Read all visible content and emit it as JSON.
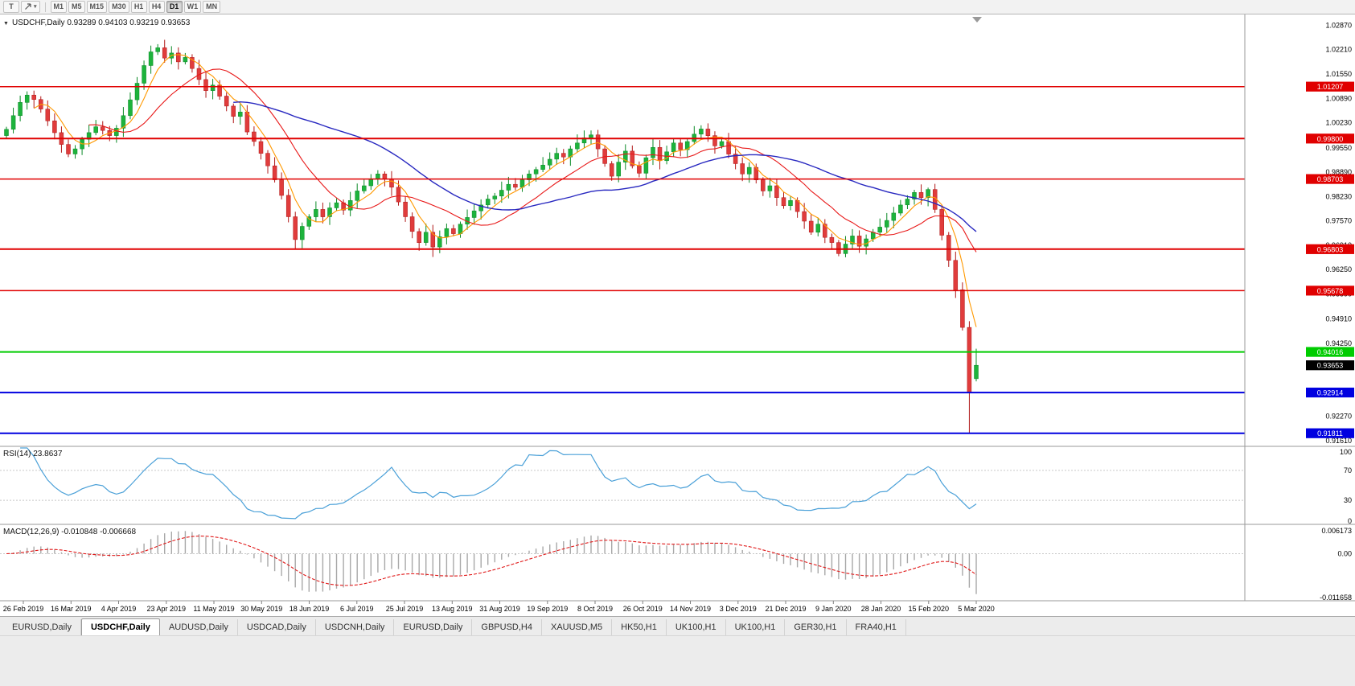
{
  "toolbar": {
    "tools": [
      {
        "name": "text-tool",
        "label": "T"
      },
      {
        "name": "cursor-tool",
        "icon": "cursor-arrow-icon"
      }
    ],
    "timeframes": [
      "M1",
      "M5",
      "M15",
      "M30",
      "H1",
      "H4",
      "D1",
      "W1",
      "MN"
    ],
    "active_timeframe": "D1"
  },
  "chart_header": {
    "collapse_arrow": "▼",
    "symbol": "USDCHF,Daily",
    "ohlc": "0.93289 0.94103 0.93219 0.93653"
  },
  "chart_data": {
    "type": "candlestick",
    "symbol": "USDCHF",
    "period": "Daily",
    "price_axis_labels": [
      "1.02870",
      "1.02210",
      "1.01550",
      "1.00890",
      "1.00230",
      "0.99550",
      "0.98890",
      "0.98230",
      "0.97570",
      "0.96910",
      "0.96250",
      "0.95590",
      "0.94910",
      "0.94250",
      "0.93590",
      "0.92930",
      "0.92270",
      "0.91610"
    ],
    "price_range": {
      "top": 1.0312,
      "bottom": 0.915
    },
    "date_labels": [
      "26 Feb 2019",
      "16 Mar 2019",
      "4 Apr 2019",
      "23 Apr 2019",
      "11 May 2019",
      "30 May 2019",
      "18 Jun 2019",
      "6 Jul 2019",
      "25 Jul 2019",
      "13 Aug 2019",
      "31 Aug 2019",
      "19 Sep 2019",
      "8 Oct 2019",
      "26 Oct 2019",
      "14 Nov 2019",
      "3 Dec 2019",
      "21 Dec 2019",
      "9 Jan 2020",
      "28 Jan 2020",
      "15 Feb 2020",
      "5 Mar 2020"
    ],
    "first_open": 0.9988,
    "closes": [
      1.0005,
      1.0042,
      1.0078,
      1.0098,
      1.0086,
      1.006,
      1.0028,
      0.9996,
      0.9964,
      0.9938,
      0.9952,
      0.9978,
      0.9996,
      1.0012,
      1.0002,
      0.9988,
      1.0008,
      1.0042,
      1.0085,
      1.013,
      1.0178,
      1.0215,
      1.0226,
      1.0198,
      1.0212,
      1.0188,
      1.02,
      1.017,
      1.014,
      1.011,
      1.0125,
      1.0095,
      1.0068,
      1.004,
      1.0052,
      0.9998,
      0.9972,
      0.994,
      0.9906,
      0.9868,
      0.9826,
      0.9768,
      0.9706,
      0.9742,
      0.9768,
      0.9788,
      0.9768,
      0.9792,
      0.9806,
      0.9786,
      0.9812,
      0.9838,
      0.9852,
      0.987,
      0.9884,
      0.987,
      0.9848,
      0.9808,
      0.9768,
      0.9728,
      0.9698,
      0.9726,
      0.9686,
      0.9714,
      0.9736,
      0.9722,
      0.9748,
      0.9766,
      0.9784,
      0.98,
      0.9816,
      0.9824,
      0.984,
      0.9856,
      0.9848,
      0.9868,
      0.9884,
      0.9896,
      0.9908,
      0.9924,
      0.994,
      0.993,
      0.9952,
      0.9968,
      0.9982,
      0.999,
      0.9952,
      0.9912,
      0.9878,
      0.9916,
      0.9946,
      0.9906,
      0.9886,
      0.9928,
      0.9956,
      0.992,
      0.9944,
      0.9968,
      0.995,
      0.9972,
      0.9992,
      1.0006,
      0.9988,
      0.996,
      0.9972,
      0.9938,
      0.9912,
      0.9884,
      0.9902,
      0.9868,
      0.9838,
      0.9852,
      0.982,
      0.9798,
      0.9812,
      0.9782,
      0.9756,
      0.9726,
      0.9748,
      0.9712,
      0.9698,
      0.9668,
      0.9694,
      0.9716,
      0.9688,
      0.9708,
      0.9726,
      0.974,
      0.9758,
      0.9778,
      0.98,
      0.9816,
      0.9834,
      0.982,
      0.9842,
      0.9788,
      0.9718,
      0.965,
      0.957,
      0.9468,
      0.9292,
      0.93653
    ],
    "spikes": {
      "3": {
        "h": 1.0108
      },
      "21": {
        "h": 1.0232
      },
      "22": {
        "h": 1.0236
      },
      "42": {
        "l": 0.968
      },
      "62": {
        "l": 0.9659
      },
      "85": {
        "h": 1.0002
      },
      "101": {
        "h": 1.0016
      },
      "121": {
        "l": 0.9661
      },
      "134": {
        "h": 0.9847
      },
      "140": {
        "l": 0.9181
      }
    },
    "last_candle": {
      "open": 0.93289,
      "high": 0.94103,
      "low": 0.93219,
      "close": 0.93653
    },
    "hlines": [
      {
        "price": 1.01207,
        "label": "1.01207",
        "color": "#e00000",
        "width": 1.5
      },
      {
        "price": 0.998,
        "label": "0.99800",
        "color": "#e00000",
        "width": 2
      },
      {
        "price": 0.98703,
        "label": "0.98703",
        "color": "#e00000",
        "width": 1.5
      },
      {
        "price": 0.96803,
        "label": "0.96803",
        "color": "#e00000",
        "width": 2
      },
      {
        "price": 0.95678,
        "label": "0.95678",
        "color": "#e00000",
        "width": 1.5
      },
      {
        "price": 0.94016,
        "label": "0.94016",
        "color": "#00cc00",
        "width": 2
      },
      {
        "price": 0.92914,
        "label": "0.92914",
        "color": "#0000e0",
        "width": 2
      },
      {
        "price": 0.91811,
        "label": "0.91811",
        "color": "#0000e0",
        "width": 2
      }
    ],
    "current_price": {
      "price": 0.93653,
      "label": "0.93653",
      "color": "#000000"
    },
    "moving_averages": [
      {
        "name": "ma-fast",
        "window": 5,
        "color": "#ff9900"
      },
      {
        "name": "ma-mid",
        "window": 13,
        "color": "#e81818"
      },
      {
        "name": "ma-slow",
        "window": 34,
        "color": "#2828c0"
      }
    ],
    "candle_colors": {
      "up": "#1db33c",
      "up_border": "#0b8a27",
      "down": "#e03c3c",
      "down_border": "#b01818"
    },
    "rsi": {
      "title": "RSI(14) 23.8637",
      "period": 14,
      "current": 23.8637,
      "axis_labels": [
        "100",
        "70",
        "30",
        "0"
      ],
      "levels": [
        70,
        30
      ],
      "color": "#4aa0d8"
    },
    "macd": {
      "title": "MACD(12,26,9) -0.010848 -0.006668",
      "fast": 12,
      "slow": 26,
      "signal": 9,
      "current_macd": -0.010848,
      "current_signal": -0.006668,
      "axis_top": "0.006173",
      "axis_zero": "0.00",
      "axis_bottom": "-0.011658",
      "histogram_color": "#a8a8a8",
      "signal_color": "#e01818"
    }
  },
  "tabs": {
    "items": [
      "EURUSD,Daily",
      "USDCHF,Daily",
      "AUDUSD,Daily",
      "USDCAD,Daily",
      "USDCNH,Daily",
      "EURUSD,Daily",
      "GBPUSD,H4",
      "XAUUSD,M5",
      "HK50,H1",
      "UK100,H1",
      "UK100,H1",
      "GER30,H1",
      "FRA40,H1"
    ],
    "active_index": 1
  }
}
